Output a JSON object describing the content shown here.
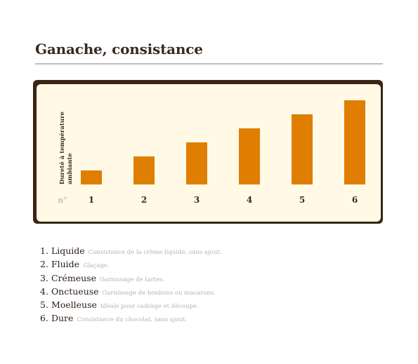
{
  "title": "Ganache, consistance",
  "chart_data": {
    "type": "bar",
    "ylabel": "Dureté à température ambiante",
    "xlabel": "n°",
    "categories": [
      "1",
      "2",
      "3",
      "4",
      "5",
      "6"
    ],
    "values": [
      1,
      2,
      3,
      4,
      5,
      6
    ],
    "ylim": [
      0,
      6
    ],
    "grid": false,
    "colors": {
      "bar": "#df7e00",
      "frame": "#3b2414",
      "background": "#fff9e6"
    }
  },
  "legend": [
    {
      "number": "1.",
      "name": "Liquide",
      "description": "Consistance de la crème liquide, sans ajout."
    },
    {
      "number": "2.",
      "name": "Fluide",
      "description": "Glaçage."
    },
    {
      "number": "3.",
      "name": "Crémeuse",
      "description": "Garnissage de tartes."
    },
    {
      "number": "4.",
      "name": "Onctueuse",
      "description": "Garnissage de bonbons ou macarons."
    },
    {
      "number": "5.",
      "name": "Moelleuse",
      "description": "Idéale pour cadrage et découpe."
    },
    {
      "number": "6.",
      "name": "Dure",
      "description": "Consistance du chocolat, sans ajout."
    }
  ]
}
